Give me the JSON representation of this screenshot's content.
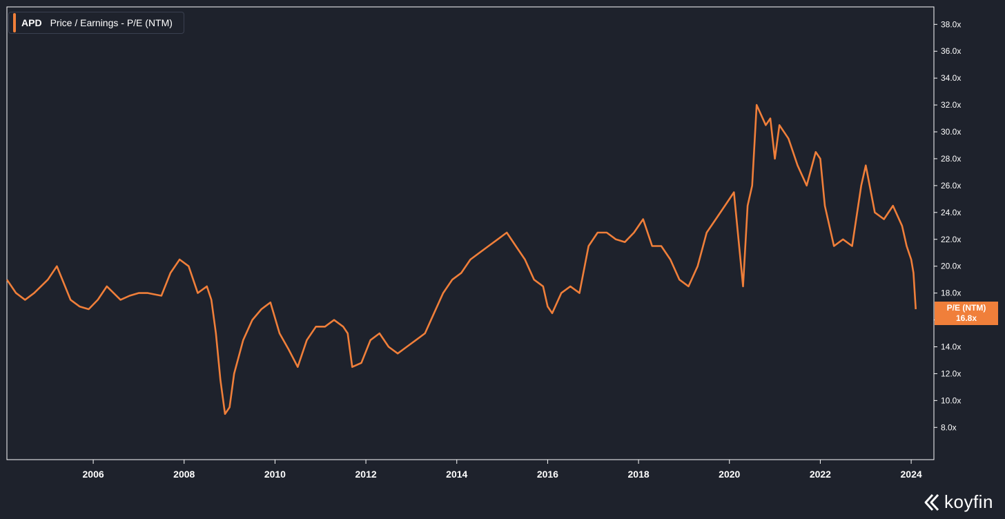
{
  "brand": {
    "logo_text": "koyfin"
  },
  "legend": {
    "ticker": "APD",
    "metric": "Price / Earnings - P/E (NTM)"
  },
  "badge": {
    "label": "P/E (NTM)",
    "value": "16.8x"
  },
  "colors": {
    "background": "#1e222c",
    "line": "#f07f3a",
    "axis": "#ffffff",
    "badge_bg": "#f07f3a"
  },
  "chart_data": {
    "type": "line",
    "grid": false,
    "legend_position": "top-left",
    "y_axis_side": "right",
    "ylim": [
      5.6,
      39.3
    ],
    "y_ticks": [
      8,
      10,
      12,
      14,
      16,
      18,
      20,
      22,
      24,
      26,
      28,
      30,
      32,
      34,
      36,
      38
    ],
    "y_tick_labels": [
      "8.0x",
      "10.0x",
      "12.0x",
      "14.0x",
      "16.0x",
      "18.0x",
      "20.0x",
      "22.0x",
      "24.0x",
      "26.0x",
      "28.0x",
      "30.0x",
      "32.0x",
      "34.0x",
      "36.0x",
      "38.0x"
    ],
    "xlim": [
      2004.1,
      2024.5
    ],
    "x_ticks": [
      2006,
      2008,
      2010,
      2012,
      2014,
      2016,
      2018,
      2020,
      2022,
      2024
    ],
    "x_tick_labels": [
      "2006",
      "2008",
      "2010",
      "2012",
      "2014",
      "2016",
      "2018",
      "2020",
      "2022",
      "2024"
    ],
    "series": [
      {
        "name": "APD Price / Earnings - P/E (NTM)",
        "x": [
          2004.1,
          2004.3,
          2004.5,
          2004.7,
          2005.0,
          2005.2,
          2005.5,
          2005.7,
          2005.9,
          2006.1,
          2006.3,
          2006.6,
          2006.8,
          2007.0,
          2007.2,
          2007.5,
          2007.7,
          2007.9,
          2008.1,
          2008.3,
          2008.5,
          2008.6,
          2008.7,
          2008.8,
          2008.9,
          2009.0,
          2009.1,
          2009.3,
          2009.5,
          2009.7,
          2009.9,
          2010.1,
          2010.3,
          2010.5,
          2010.7,
          2010.9,
          2011.1,
          2011.3,
          2011.5,
          2011.6,
          2011.7,
          2011.9,
          2012.1,
          2012.3,
          2012.5,
          2012.7,
          2012.9,
          2013.1,
          2013.3,
          2013.5,
          2013.7,
          2013.9,
          2014.1,
          2014.3,
          2014.5,
          2014.7,
          2014.9,
          2015.1,
          2015.3,
          2015.5,
          2015.7,
          2015.9,
          2016.0,
          2016.1,
          2016.3,
          2016.5,
          2016.7,
          2016.9,
          2017.1,
          2017.3,
          2017.5,
          2017.7,
          2017.9,
          2018.1,
          2018.3,
          2018.5,
          2018.7,
          2018.9,
          2019.1,
          2019.3,
          2019.5,
          2019.7,
          2019.9,
          2020.1,
          2020.2,
          2020.3,
          2020.4,
          2020.5,
          2020.6,
          2020.8,
          2020.9,
          2021.0,
          2021.1,
          2021.3,
          2021.5,
          2021.7,
          2021.9,
          2022.0,
          2022.1,
          2022.3,
          2022.5,
          2022.7,
          2022.9,
          2023.0,
          2023.2,
          2023.4,
          2023.6,
          2023.8,
          2023.9,
          2024.0,
          2024.05,
          2024.1
        ],
        "y": [
          19.0,
          18.0,
          17.5,
          18.0,
          19.0,
          20.0,
          17.5,
          17.0,
          16.8,
          17.5,
          18.5,
          17.5,
          17.8,
          18.0,
          18.0,
          17.8,
          19.5,
          20.5,
          20.0,
          18.0,
          18.5,
          17.5,
          15.0,
          11.5,
          9.0,
          9.5,
          12.0,
          14.5,
          16.0,
          16.8,
          17.3,
          15.0,
          13.8,
          12.5,
          14.5,
          15.5,
          15.5,
          16.0,
          15.5,
          15.0,
          12.5,
          12.8,
          14.5,
          15.0,
          14.0,
          13.5,
          14.0,
          14.5,
          15.0,
          16.5,
          18.0,
          19.0,
          19.5,
          20.5,
          21.0,
          21.5,
          22.0,
          22.5,
          21.5,
          20.5,
          19.0,
          18.5,
          17.0,
          16.5,
          18.0,
          18.5,
          18.0,
          21.5,
          22.5,
          22.5,
          22.0,
          21.8,
          22.5,
          23.5,
          21.5,
          21.5,
          20.5,
          19.0,
          18.5,
          20.0,
          22.5,
          23.5,
          24.5,
          25.5,
          22.0,
          18.5,
          24.5,
          26.0,
          32.0,
          30.5,
          31.0,
          28.0,
          30.5,
          29.5,
          27.5,
          26.0,
          28.5,
          28.0,
          24.5,
          21.5,
          22.0,
          21.5,
          26.0,
          27.5,
          24.0,
          23.5,
          24.5,
          23.0,
          21.5,
          20.5,
          19.5,
          16.8
        ]
      }
    ]
  }
}
